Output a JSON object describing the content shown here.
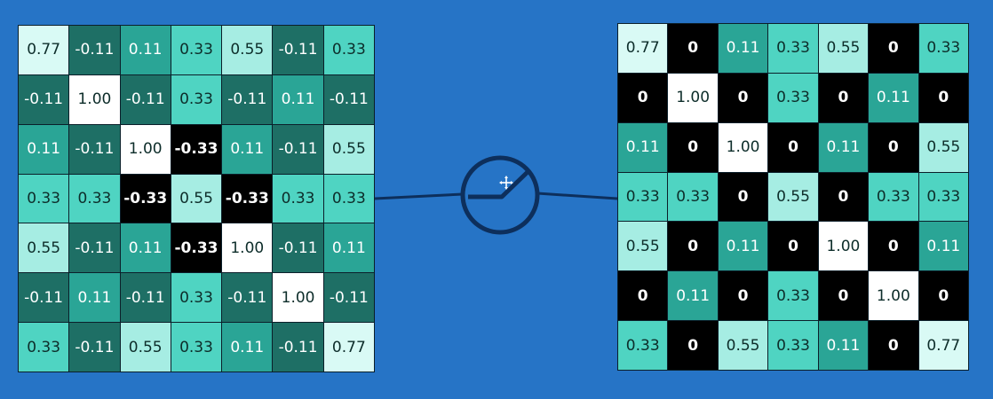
{
  "colors": {
    "background": "#2674c6",
    "cell_border": "#0b1f2a",
    "connector": "#0d2f5c",
    "levels": {
      "-0.33": "#000000",
      "-0.11": "#1e6f65",
      "0": "#000000",
      "0.11": "#2aa596",
      "0.33": "#4fd4c2",
      "0.55": "#a6ede3",
      "0.77": "#d9faf5",
      "1.00": "#ffffff"
    }
  },
  "left_matrix": [
    [
      "0.77",
      "-0.11",
      "0.11",
      "0.33",
      "0.55",
      "-0.11",
      "0.33"
    ],
    [
      "-0.11",
      "1.00",
      "-0.11",
      "0.33",
      "-0.11",
      "0.11",
      "-0.11"
    ],
    [
      "0.11",
      "-0.11",
      "1.00",
      "-0.33",
      "0.11",
      "-0.11",
      "0.55"
    ],
    [
      "0.33",
      "0.33",
      "-0.33",
      "0.55",
      "-0.33",
      "0.33",
      "0.33"
    ],
    [
      "0.55",
      "-0.11",
      "0.11",
      "-0.33",
      "1.00",
      "-0.11",
      "0.11"
    ],
    [
      "-0.11",
      "0.11",
      "-0.11",
      "0.33",
      "-0.11",
      "1.00",
      "-0.11"
    ],
    [
      "0.33",
      "-0.11",
      "0.55",
      "0.33",
      "0.11",
      "-0.11",
      "0.77"
    ]
  ],
  "right_matrix": [
    [
      "0.77",
      "0",
      "0.11",
      "0.33",
      "0.55",
      "0",
      "0.33"
    ],
    [
      "0",
      "1.00",
      "0",
      "0.33",
      "0",
      "0.11",
      "0"
    ],
    [
      "0.11",
      "0",
      "1.00",
      "0",
      "0.11",
      "0",
      "0.55"
    ],
    [
      "0.33",
      "0.33",
      "0",
      "0.55",
      "0",
      "0.33",
      "0.33"
    ],
    [
      "0.55",
      "0",
      "0.11",
      "0",
      "1.00",
      "0",
      "0.11"
    ],
    [
      "0",
      "0.11",
      "0",
      "0.33",
      "0",
      "1.00",
      "0"
    ],
    [
      "0.33",
      "0",
      "0.55",
      "0.33",
      "0.11",
      "0",
      "0.77"
    ]
  ],
  "icons": {
    "connector": "relu-activation-icon",
    "cursor": "move-cursor-icon"
  }
}
